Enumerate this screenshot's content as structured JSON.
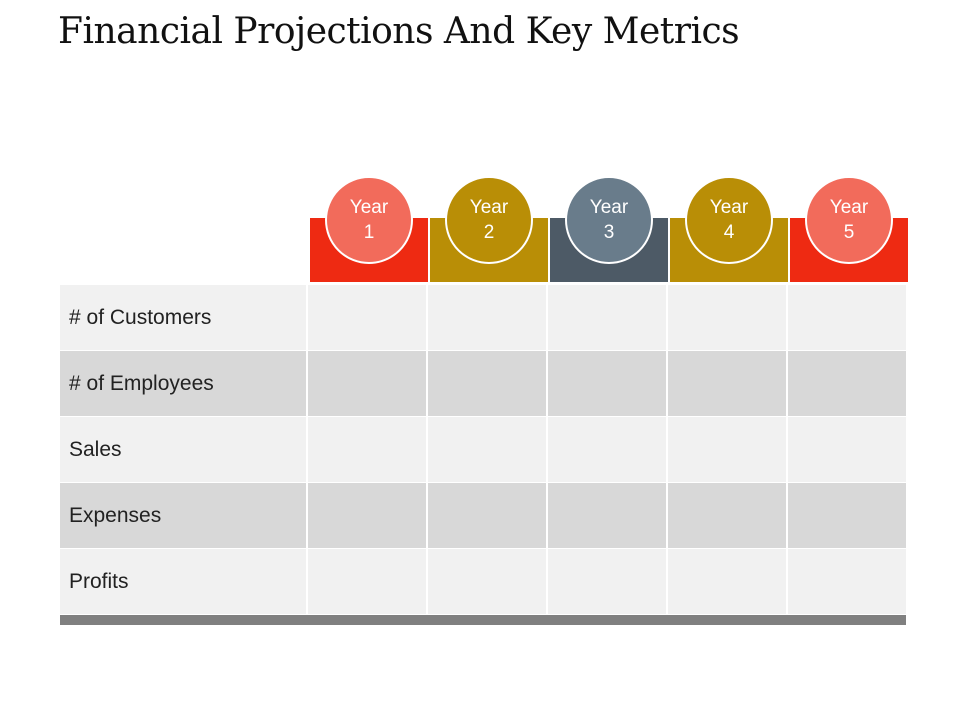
{
  "title": "Financial Projections And Key Metrics",
  "columns": [
    {
      "line1": "Year",
      "line2": "1",
      "bar_color": "#ee2a12",
      "circle_color": "#f26b5b"
    },
    {
      "line1": "Year",
      "line2": "2",
      "bar_color": "#b98e06",
      "circle_color": "#b98e06"
    },
    {
      "line1": "Year",
      "line2": "3",
      "bar_color": "#4d5a66",
      "circle_color": "#697c8b"
    },
    {
      "line1": "Year",
      "line2": "4",
      "bar_color": "#b98e06",
      "circle_color": "#b98e06"
    },
    {
      "line1": "Year",
      "line2": "5",
      "bar_color": "#ee2a12",
      "circle_color": "#f26b5b"
    }
  ],
  "rows": [
    {
      "label": "# of Customers",
      "values": [
        "",
        "",
        "",
        "",
        ""
      ]
    },
    {
      "label": "# of Employees",
      "values": [
        "",
        "",
        "",
        "",
        ""
      ]
    },
    {
      "label": "Sales",
      "values": [
        "",
        "",
        "",
        "",
        ""
      ]
    },
    {
      "label": "Expenses",
      "values": [
        "",
        "",
        "",
        "",
        ""
      ]
    },
    {
      "label": "Profits",
      "values": [
        "",
        "",
        "",
        "",
        ""
      ]
    }
  ]
}
